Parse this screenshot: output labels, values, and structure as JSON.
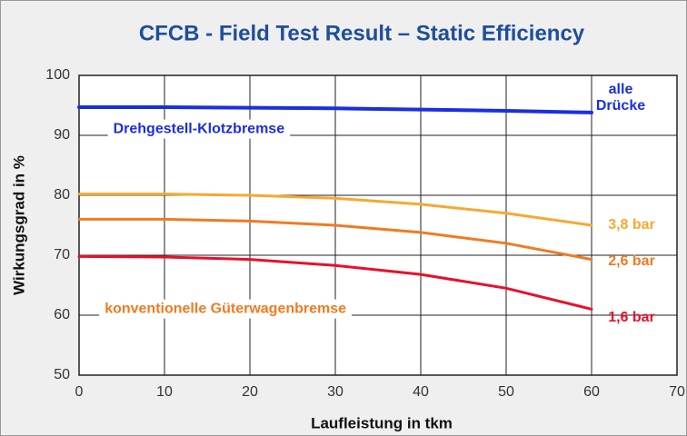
{
  "chart_data": {
    "type": "line",
    "title": "CFCB - Field Test Result – Static Efficiency",
    "xlabel": "Laufleistung in tkm",
    "ylabel": "Wirkungsgrad in %",
    "x": [
      0,
      10,
      20,
      30,
      40,
      50,
      60
    ],
    "xlim": [
      0,
      70
    ],
    "xticks": [
      0,
      10,
      20,
      30,
      40,
      50,
      60,
      70
    ],
    "ylim": [
      50,
      100
    ],
    "yticks": [
      50,
      60,
      70,
      80,
      90,
      100
    ],
    "grid": true,
    "series": [
      {
        "name": "alle Drücke",
        "color": "#1a2fe0",
        "values": [
          94.7,
          94.7,
          94.6,
          94.5,
          94.3,
          94.1,
          93.8
        ]
      },
      {
        "name": "3,8 bar",
        "color": "#f7a830",
        "values": [
          80.2,
          80.2,
          80.0,
          79.5,
          78.5,
          77.0,
          75.0
        ]
      },
      {
        "name": "2,6 bar",
        "color": "#f07a22",
        "values": [
          76.0,
          76.0,
          75.7,
          75.0,
          73.8,
          72.0,
          69.3
        ]
      },
      {
        "name": "1,6 bar",
        "color": "#e8102a",
        "values": [
          69.8,
          69.7,
          69.3,
          68.3,
          66.8,
          64.5,
          61.0
        ]
      }
    ],
    "annotations": [
      "Drehgestell-Klotzbremse",
      "konventionelle Güterwagenbremse"
    ]
  }
}
